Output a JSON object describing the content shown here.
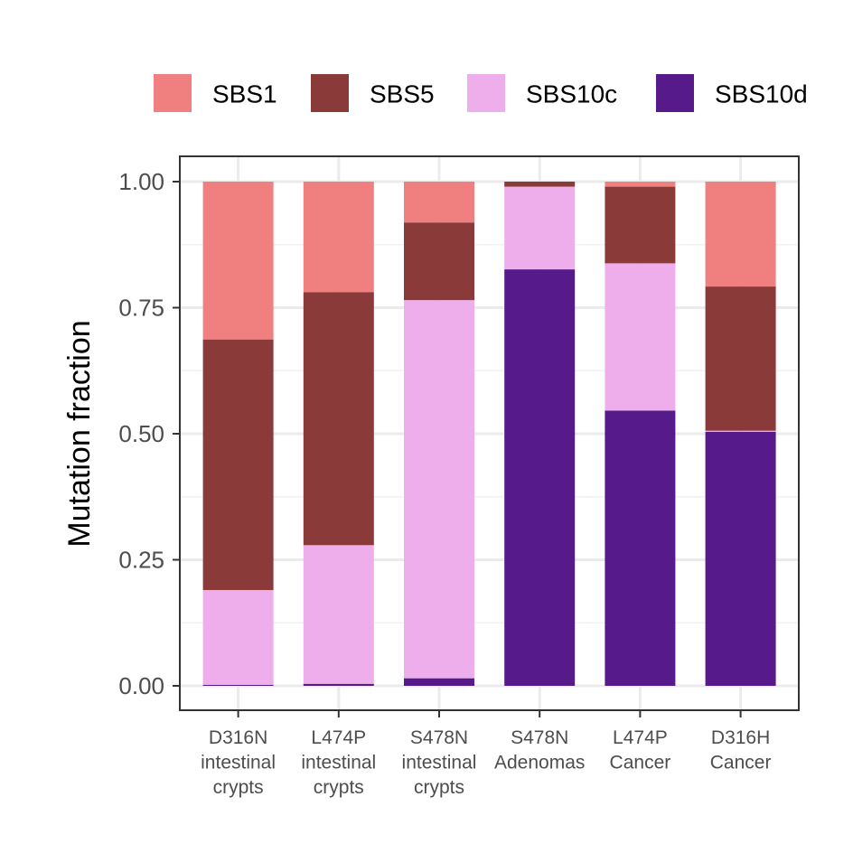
{
  "chart_data": {
    "type": "bar",
    "stacked": true,
    "title": "",
    "xlabel": "",
    "ylabel": "Mutation fraction",
    "ylim": [
      0,
      1
    ],
    "yticks": [
      0,
      0.25,
      0.5,
      0.75,
      1
    ],
    "ytick_labels": [
      "0.00",
      "0.25",
      "0.50",
      "0.75",
      "1.00"
    ],
    "grid": true,
    "legend_position": "top",
    "categories": [
      [
        "D316N",
        "intestinal",
        "crypts"
      ],
      [
        "L474P",
        "intestinal",
        "crypts"
      ],
      [
        "S478N",
        "intestinal",
        "crypts"
      ],
      [
        "S478N",
        "Adenomas"
      ],
      [
        "L474P",
        "Cancer"
      ],
      [
        "D316H",
        "Cancer"
      ]
    ],
    "series": [
      {
        "name": "SBS10d",
        "color": "#561a8b",
        "values": [
          0.002,
          0.004,
          0.015,
          0.826,
          0.546,
          0.504
        ]
      },
      {
        "name": "SBS10c",
        "color": "#edaeeb",
        "values": [
          0.188,
          0.275,
          0.75,
          0.164,
          0.292,
          0.002
        ]
      },
      {
        "name": "SBS5",
        "color": "#8b3a3a",
        "values": [
          0.497,
          0.502,
          0.154,
          0.01,
          0.152,
          0.286
        ]
      },
      {
        "name": "SBS1",
        "color": "#f08080",
        "values": [
          0.313,
          0.219,
          0.081,
          0.0,
          0.01,
          0.208
        ]
      }
    ],
    "legend_order": [
      "SBS1",
      "SBS5",
      "SBS10c",
      "SBS10d"
    ]
  }
}
